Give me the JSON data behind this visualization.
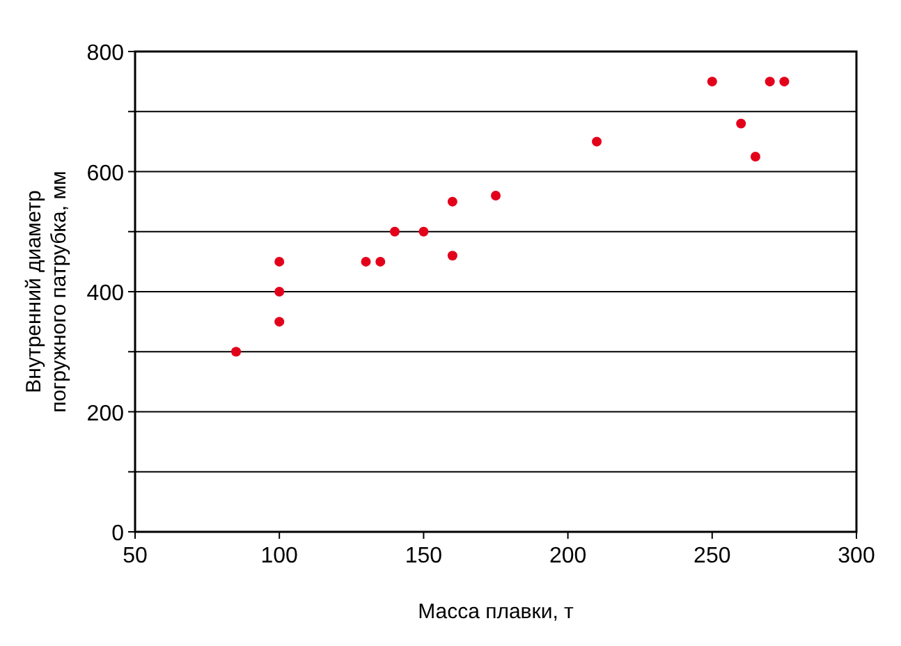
{
  "chart_data": {
    "type": "scatter",
    "xlabel": "Масса плавки, т",
    "ylabel": "Внутренний диаметр погружного патрубка, мм",
    "xlim": [
      50,
      300
    ],
    "xticks": [
      50,
      100,
      150,
      200,
      250,
      300
    ],
    "ylim": [
      0,
      800
    ],
    "yticks": [
      0,
      {
        "value": 100,
        "label": null
      },
      200,
      {
        "value": 300,
        "label": null
      },
      400,
      {
        "value": 500,
        "label": null
      },
      600,
      {
        "value": 700,
        "label": null
      },
      800
    ],
    "grid": "y",
    "marker": "circle",
    "series": [
      {
        "color": "#e3001b",
        "x": [
          85,
          100,
          100,
          100,
          130,
          135,
          140,
          150,
          160,
          160,
          175,
          210,
          250,
          260,
          265,
          270,
          275
        ],
        "values": [
          300,
          450,
          400,
          350,
          450,
          450,
          500,
          500,
          550,
          460,
          560,
          650,
          750,
          680,
          625,
          750,
          750
        ]
      }
    ]
  }
}
